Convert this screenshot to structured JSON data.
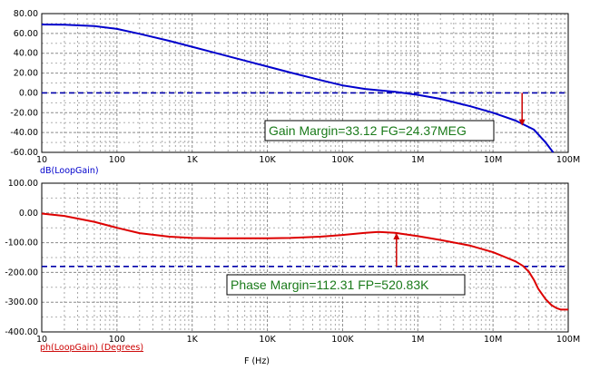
{
  "chart_data": [
    {
      "type": "line",
      "title": "",
      "ylabel": "dB(LoopGain)",
      "xscale": "log",
      "xlim": [
        10,
        100000000
      ],
      "ylim": [
        -60,
        80
      ],
      "x_tick_labels": [
        "10",
        "100",
        "1K",
        "10K",
        "100K",
        "1M",
        "10M",
        "100M"
      ],
      "y_tick_labels": [
        "80.00",
        "60.00",
        "40.00",
        "20.00",
        "0.00",
        "-20.00",
        "-40.00",
        "-60.00"
      ],
      "grid": true,
      "series": [
        {
          "color": "#0000cc",
          "x": [
            10,
            20,
            50,
            100,
            200,
            500,
            1000,
            2000,
            5000,
            10000,
            20000,
            50000,
            100000,
            200000,
            500000,
            1000000,
            2000000,
            5000000,
            10000000,
            20000000,
            35000000,
            50000000,
            63000000
          ],
          "y": [
            69,
            68.8,
            67.5,
            64.5,
            59.6,
            52.5,
            46.5,
            40.5,
            32.6,
            26.6,
            20.6,
            13,
            7.5,
            4,
            1,
            -2,
            -6,
            -13.5,
            -20,
            -28,
            -37,
            -50,
            -60
          ]
        }
      ],
      "reference_line": {
        "y": 0,
        "color": "#0000aa",
        "style": "dashed"
      },
      "marker": {
        "x": 24370000,
        "y_from": 0,
        "y_to": -33.12,
        "color": "#cc0000"
      },
      "annotation": "Gain Margin=33.12 FG=24.37MEG"
    },
    {
      "type": "line",
      "ylabel": "ph(LoopGain) (Degrees)",
      "xlabel": "F (Hz)",
      "xscale": "log",
      "xlim": [
        10,
        100000000
      ],
      "ylim": [
        -400,
        100
      ],
      "x_tick_labels": [
        "10",
        "100",
        "1K",
        "10K",
        "100K",
        "1M",
        "10M",
        "100M"
      ],
      "y_tick_labels": [
        "100.00",
        "0.00",
        "-100.00",
        "-200.00",
        "-300.00",
        "-400.00"
      ],
      "grid": true,
      "series": [
        {
          "color": "#dd0000",
          "x": [
            10,
            20,
            50,
            100,
            200,
            500,
            1000,
            2000,
            5000,
            10000,
            20000,
            50000,
            100000,
            200000,
            300000,
            500000,
            1000000,
            2000000,
            5000000,
            10000000,
            15000000,
            20000000,
            25000000,
            30000000,
            35000000,
            40000000,
            50000000,
            60000000,
            70000000,
            80000000,
            100000000
          ],
          "y": [
            -2,
            -10,
            -30,
            -50,
            -68,
            -80,
            -84,
            -85,
            -85,
            -85,
            -84,
            -80,
            -74,
            -67,
            -64,
            -67,
            -78,
            -91,
            -110,
            -132,
            -150,
            -163,
            -178,
            -198,
            -225,
            -255,
            -290,
            -310,
            -320,
            -325,
            -325
          ]
        }
      ],
      "reference_line": {
        "y": -180,
        "color": "#0000aa",
        "style": "dashed"
      },
      "marker": {
        "x": 520830,
        "y_from": -180,
        "y_to": -67.69,
        "color": "#cc0000"
      },
      "annotation": "Phase Margin=112.31 FP=520.83K"
    }
  ]
}
